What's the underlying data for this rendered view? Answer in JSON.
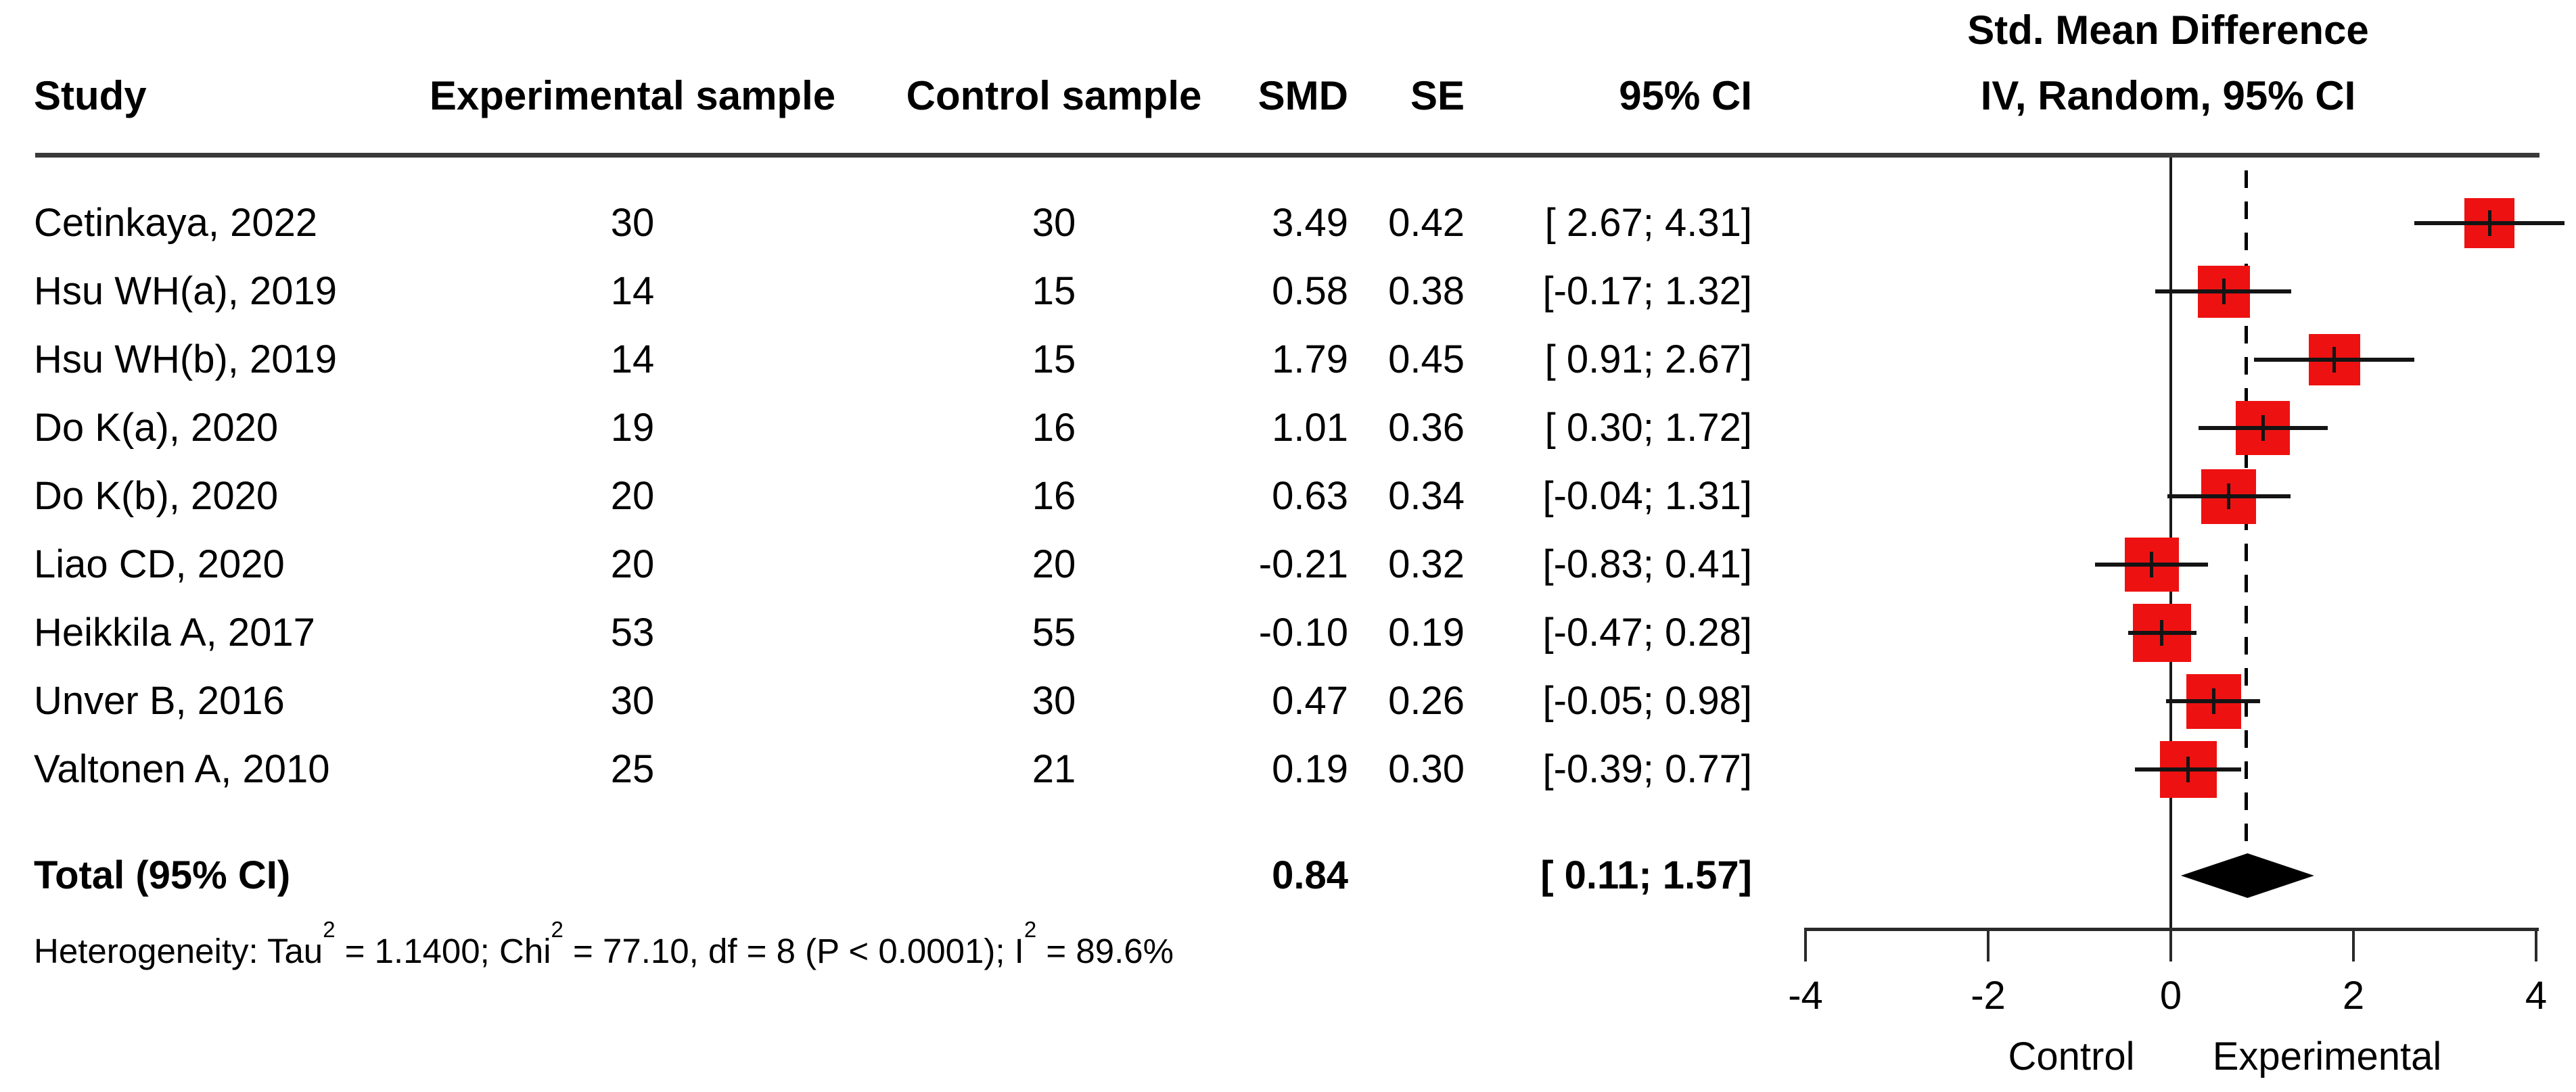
{
  "header": {
    "study": "Study",
    "experimental_sample": "Experimental sample",
    "control_sample": "Control sample",
    "smd": "SMD",
    "se": "SE",
    "ci": "95% CI",
    "effect_line1": "Std. Mean Difference",
    "effect_line2": "IV, Random, 95% CI"
  },
  "rows": [
    {
      "study": "Cetinkaya, 2022",
      "experimental_n": "30",
      "control_n": "30",
      "smd": "3.49",
      "se": "0.42",
      "ci": "[ 2.67; 4.31]"
    },
    {
      "study": "Hsu WH(a), 2019",
      "experimental_n": "14",
      "control_n": "15",
      "smd": "0.58",
      "se": "0.38",
      "ci": "[-0.17; 1.32]"
    },
    {
      "study": "Hsu WH(b), 2019",
      "experimental_n": "14",
      "control_n": "15",
      "smd": "1.79",
      "se": "0.45",
      "ci": "[ 0.91; 2.67]"
    },
    {
      "study": "Do K(a), 2020",
      "experimental_n": "19",
      "control_n": "16",
      "smd": "1.01",
      "se": "0.36",
      "ci": "[ 0.30; 1.72]"
    },
    {
      "study": "Do K(b), 2020",
      "experimental_n": "20",
      "control_n": "16",
      "smd": "0.63",
      "se": "0.34",
      "ci": "[-0.04; 1.31]"
    },
    {
      "study": "Liao CD, 2020",
      "experimental_n": "20",
      "control_n": "20",
      "smd": "-0.21",
      "se": "0.32",
      "ci": "[-0.83; 0.41]"
    },
    {
      "study": "Heikkila A, 2017",
      "experimental_n": "53",
      "control_n": "55",
      "smd": "-0.10",
      "se": "0.19",
      "ci": "[-0.47; 0.28]"
    },
    {
      "study": "Unver B, 2016",
      "experimental_n": "30",
      "control_n": "30",
      "smd": "0.47",
      "se": "0.26",
      "ci": "[-0.05; 0.98]"
    },
    {
      "study": "Valtonen A, 2010",
      "experimental_n": "25",
      "control_n": "21",
      "smd": "0.19",
      "se": "0.30",
      "ci": "[-0.39; 0.77]"
    }
  ],
  "total": {
    "label": "Total (95% CI)",
    "smd": "0.84",
    "ci": "[ 0.11; 1.57]"
  },
  "heterogeneity_segments": [
    {
      "text": "Heterogeneity: Tau"
    },
    {
      "text": "2",
      "sup": true
    },
    {
      "text": " = 1.1400; Chi"
    },
    {
      "text": "2",
      "sup": true
    },
    {
      "text": " = 77.10, df = 8 (P < 0.0001); I"
    },
    {
      "text": "2",
      "sup": true
    },
    {
      "text": " = 89.6%"
    }
  ],
  "axis": {
    "ticks": [
      "-4",
      "-2",
      "0",
      "2",
      "4"
    ],
    "left_label": "Control",
    "right_label": "Experimental"
  },
  "colors": {
    "square": "#ee1111",
    "diamond": "#000000",
    "line": "#141414",
    "rule": "#3a3a3a"
  },
  "chart_data": {
    "type": "scatter",
    "subtype": "forest_plot",
    "title": "Std. Mean Difference, IV, Random, 95% CI",
    "xlabel": "Std. Mean Difference",
    "x_axis": {
      "range": [
        -4,
        4
      ],
      "ticks": [
        -4,
        -2,
        0,
        2,
        4
      ],
      "left_direction_label": "Control",
      "right_direction_label": "Experimental"
    },
    "reference_lines": [
      {
        "x": 0,
        "style": "solid"
      },
      {
        "x": 0.84,
        "style": "dashed"
      }
    ],
    "studies": [
      {
        "study": "Cetinkaya, 2022",
        "experimental_n": 30,
        "control_n": 30,
        "smd": 3.49,
        "se": 0.42,
        "ci_low": 2.67,
        "ci_high": 4.31
      },
      {
        "study": "Hsu WH(a), 2019",
        "experimental_n": 14,
        "control_n": 15,
        "smd": 0.58,
        "se": 0.38,
        "ci_low": -0.17,
        "ci_high": 1.32
      },
      {
        "study": "Hsu WH(b), 2019",
        "experimental_n": 14,
        "control_n": 15,
        "smd": 1.79,
        "se": 0.45,
        "ci_low": 0.91,
        "ci_high": 2.67
      },
      {
        "study": "Do K(a), 2020",
        "experimental_n": 19,
        "control_n": 16,
        "smd": 1.01,
        "se": 0.36,
        "ci_low": 0.3,
        "ci_high": 1.72
      },
      {
        "study": "Do K(b), 2020",
        "experimental_n": 20,
        "control_n": 16,
        "smd": 0.63,
        "se": 0.34,
        "ci_low": -0.04,
        "ci_high": 1.31
      },
      {
        "study": "Liao CD, 2020",
        "experimental_n": 20,
        "control_n": 20,
        "smd": -0.21,
        "se": 0.32,
        "ci_low": -0.83,
        "ci_high": 0.41
      },
      {
        "study": "Heikkila A, 2017",
        "experimental_n": 53,
        "control_n": 55,
        "smd": -0.1,
        "se": 0.19,
        "ci_low": -0.47,
        "ci_high": 0.28
      },
      {
        "study": "Unver B, 2016",
        "experimental_n": 30,
        "control_n": 30,
        "smd": 0.47,
        "se": 0.26,
        "ci_low": -0.05,
        "ci_high": 0.98
      },
      {
        "study": "Valtonen A, 2010",
        "experimental_n": 25,
        "control_n": 21,
        "smd": 0.19,
        "se": 0.3,
        "ci_low": -0.39,
        "ci_high": 0.77
      }
    ],
    "pooled": {
      "label": "Total (95% CI)",
      "smd": 0.84,
      "ci_low": 0.11,
      "ci_high": 1.57
    },
    "heterogeneity": {
      "tau2": 1.14,
      "chi2": 77.1,
      "df": 8,
      "p": "< 0.0001",
      "i2_percent": 89.6
    }
  }
}
